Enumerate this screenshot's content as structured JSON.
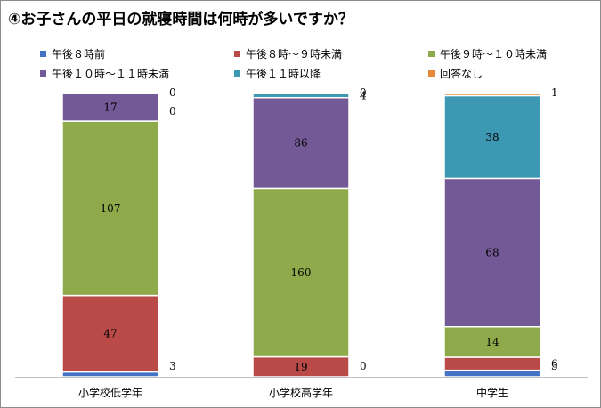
{
  "chart_data": {
    "type": "bar",
    "stacked": true,
    "title": "④お子さんの平日の就寝時間は何時が多いですか？",
    "categories": [
      "小学校低学年",
      "小学校高学年",
      "中学生"
    ],
    "series": [
      {
        "name": "午後８時前",
        "color": "#4472c4",
        "values": [
          3,
          0,
          3
        ]
      },
      {
        "name": "午後８時～９時未満",
        "color": "#b94a48",
        "values": [
          47,
          19,
          6
        ]
      },
      {
        "name": "午後９時～１０時未満",
        "color": "#8faa4b",
        "values": [
          107,
          160,
          14
        ]
      },
      {
        "name": "午後１０時～１１時未満",
        "color": "#735a96",
        "values": [
          17,
          86,
          68
        ]
      },
      {
        "name": "午後１１時以降",
        "color": "#3d98b3",
        "values": [
          0,
          4,
          38
        ]
      },
      {
        "name": "回答なし",
        "color": "#e8893a",
        "values": [
          0,
          0,
          1
        ]
      }
    ],
    "legend_position": "top",
    "grid": false
  }
}
